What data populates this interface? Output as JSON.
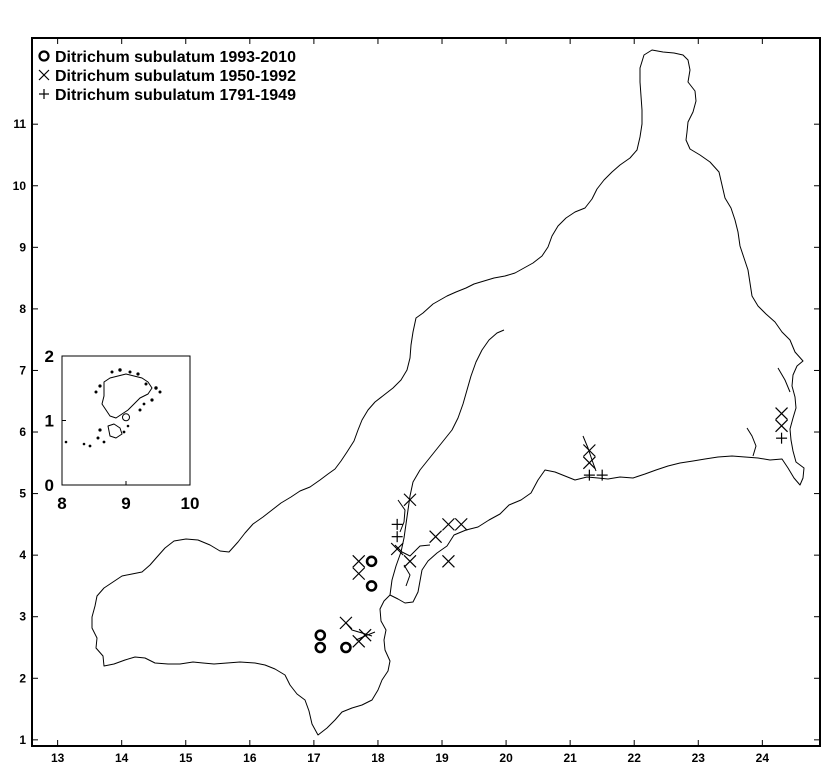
{
  "legend": {
    "entries": [
      {
        "symbol": "circle",
        "label": "Ditrichum subulatum 1993-2010"
      },
      {
        "symbol": "cross",
        "label": "Ditrichum subulatum 1950-1992"
      },
      {
        "symbol": "plus",
        "label": "Ditrichum subulatum 1791-1949"
      }
    ]
  },
  "map": {
    "x_ticks": [
      "13",
      "14",
      "15",
      "16",
      "17",
      "18",
      "19",
      "20",
      "21",
      "22",
      "23",
      "24"
    ],
    "y_ticks": [
      "1",
      "2",
      "3",
      "4",
      "5",
      "6",
      "7",
      "8",
      "9",
      "10",
      "11"
    ],
    "xlim": [
      12.6,
      24.9
    ],
    "ylim": [
      0.9,
      12.4
    ]
  },
  "inset": {
    "x_ticks": [
      "8",
      "9",
      "10"
    ],
    "y_ticks": [
      "0",
      "1",
      "2"
    ],
    "xlim": [
      8,
      10
    ],
    "ylim": [
      0,
      2
    ],
    "records": [
      {
        "type": "circle",
        "x": 9.0,
        "y": 1.05
      }
    ]
  },
  "records": {
    "1993-2010": [
      {
        "x": 17.1,
        "y": 2.7
      },
      {
        "x": 17.1,
        "y": 2.5
      },
      {
        "x": 17.5,
        "y": 2.5
      },
      {
        "x": 17.9,
        "y": 3.9
      },
      {
        "x": 17.9,
        "y": 3.5
      }
    ],
    "1950-1992": [
      {
        "x": 17.5,
        "y": 2.9
      },
      {
        "x": 17.7,
        "y": 2.6
      },
      {
        "x": 17.8,
        "y": 2.7
      },
      {
        "x": 17.7,
        "y": 3.9
      },
      {
        "x": 17.7,
        "y": 3.7
      },
      {
        "x": 18.3,
        "y": 4.1
      },
      {
        "x": 18.5,
        "y": 4.9
      },
      {
        "x": 18.5,
        "y": 3.9
      },
      {
        "x": 18.9,
        "y": 4.3
      },
      {
        "x": 19.1,
        "y": 4.5
      },
      {
        "x": 19.3,
        "y": 4.5
      },
      {
        "x": 19.1,
        "y": 3.9
      },
      {
        "x": 21.3,
        "y": 5.7
      },
      {
        "x": 21.3,
        "y": 5.5
      },
      {
        "x": 24.3,
        "y": 6.3
      },
      {
        "x": 24.3,
        "y": 6.1
      }
    ],
    "1791-1949": [
      {
        "x": 18.3,
        "y": 4.5
      },
      {
        "x": 18.3,
        "y": 4.3
      },
      {
        "x": 21.3,
        "y": 5.3
      },
      {
        "x": 21.5,
        "y": 5.3
      },
      {
        "x": 24.3,
        "y": 5.9
      }
    ]
  },
  "colors": {
    "ink": "#000000",
    "background": "#ffffff"
  }
}
